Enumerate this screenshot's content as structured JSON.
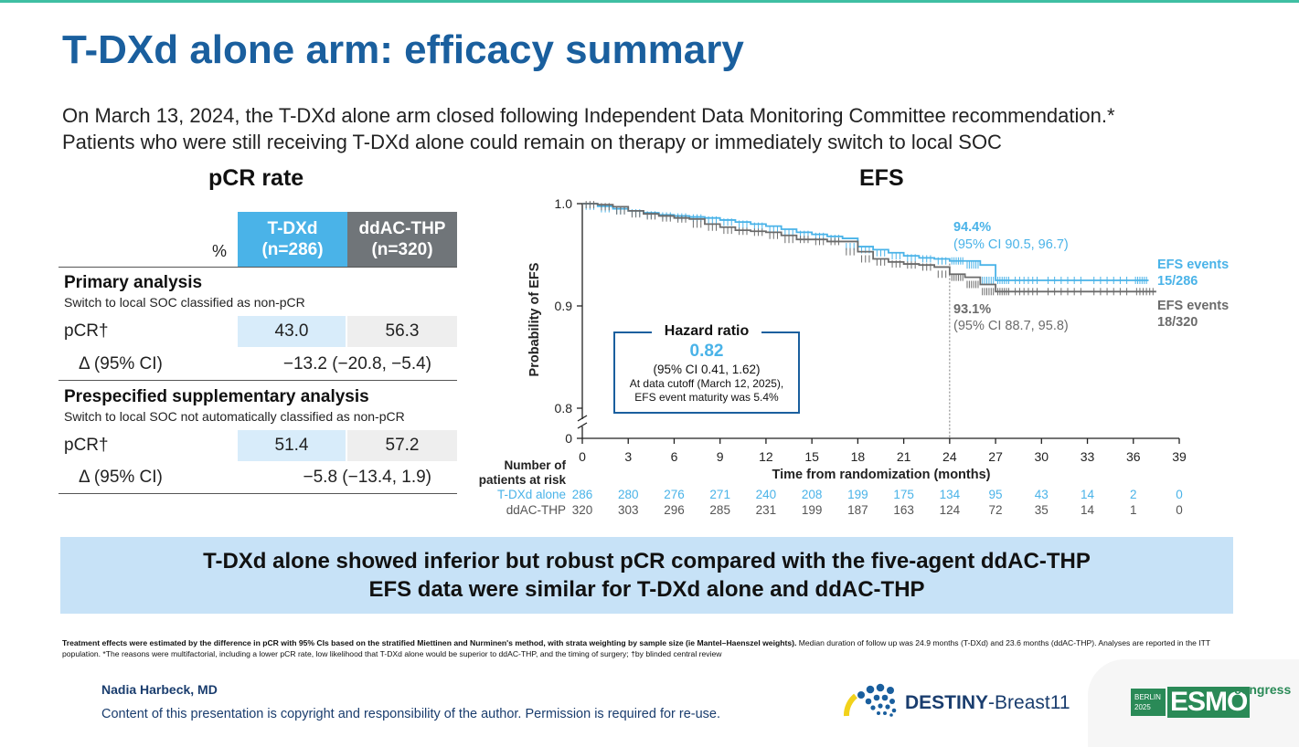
{
  "title": "T-DXd alone arm: efficacy summary",
  "intro": [
    "On March 13, 2024, the T-DXd alone arm closed following Independent Data Monitoring Committee recommendation.*",
    "Patients who were still receiving T-DXd alone could remain on therapy or immediately switch to local SOC"
  ],
  "pcr": {
    "title": "pCR rate",
    "pct_label": "%",
    "col_a": [
      "T-DXd",
      "(n=286)"
    ],
    "col_b": [
      "ddAC-THP",
      "(n=320)"
    ],
    "primary": {
      "heading": "Primary analysis",
      "sub": "Switch to local SOC classified as non-pCR",
      "row_label": "pCR†",
      "a": "43.0",
      "b": "56.3",
      "delta_label": "Δ (95% CI)",
      "delta": "−13.2 (−20.8, −5.4)"
    },
    "supplementary": {
      "heading": "Prespecified supplementary analysis",
      "sub": "Switch to local SOC not automatically classified as non-pCR",
      "row_label": "pCR†",
      "a": "51.4",
      "b": "57.2",
      "delta_label": "Δ (95% CI)",
      "delta": "−5.8 (−13.4, 1.9)"
    }
  },
  "chart_data": {
    "type": "line",
    "title": "EFS",
    "xlabel": "Time from randomization (months)",
    "ylabel": "Probability of EFS",
    "xlim": [
      0,
      39
    ],
    "ylim": [
      0.8,
      1.0
    ],
    "x_ticks": [
      0,
      3,
      6,
      9,
      12,
      15,
      18,
      21,
      24,
      27,
      30,
      33,
      36,
      39
    ],
    "y_ticks": [
      "0",
      "0.8",
      "0.9",
      "1.0"
    ],
    "axis_break": true,
    "colors": {
      "tdxd": "#4ab3e8",
      "ddac": "#6b6b6b"
    },
    "series": [
      {
        "name": "T-DXd alone",
        "x": [
          0,
          1,
          2,
          3,
          4,
          5,
          6,
          7,
          8,
          9,
          10,
          11,
          12,
          13,
          14,
          15,
          16,
          17,
          18,
          19,
          20,
          21,
          22,
          23,
          24,
          25,
          26,
          27,
          28,
          30,
          33,
          36,
          37
        ],
        "y": [
          1.0,
          0.9975,
          0.995,
          0.993,
          0.991,
          0.989,
          0.988,
          0.987,
          0.986,
          0.984,
          0.982,
          0.98,
          0.978,
          0.975,
          0.972,
          0.97,
          0.968,
          0.966,
          0.958,
          0.955,
          0.952,
          0.949,
          0.947,
          0.946,
          0.944,
          0.944,
          0.94,
          0.925,
          0.925,
          0.925,
          0.925,
          0.925,
          0.925
        ]
      },
      {
        "name": "ddAC-THP",
        "x": [
          0,
          1,
          2,
          3,
          4,
          5,
          6,
          7,
          8,
          9,
          10,
          11,
          12,
          13,
          14,
          15,
          16,
          17,
          18,
          19,
          20,
          21,
          22,
          23,
          24,
          25,
          26,
          27,
          28,
          30,
          33,
          36,
          37.5
        ],
        "y": [
          1.0,
          0.999,
          0.997,
          0.993,
          0.99,
          0.988,
          0.986,
          0.985,
          0.98,
          0.977,
          0.974,
          0.973,
          0.972,
          0.969,
          0.965,
          0.965,
          0.963,
          0.963,
          0.953,
          0.946,
          0.943,
          0.941,
          0.94,
          0.938,
          0.931,
          0.928,
          0.921,
          0.914,
          0.914,
          0.914,
          0.914,
          0.914,
          0.914
        ]
      }
    ],
    "annotations": {
      "tdxd_24": [
        "94.4%",
        "(95% CI 90.5, 96.7)"
      ],
      "ddac_24": [
        "93.1%",
        "(95% CI 88.7, 95.8)"
      ],
      "tdxd_events": [
        "EFS events",
        "15/286"
      ],
      "ddac_events": [
        "EFS events",
        "18/320"
      ],
      "hr_title": "Hazard ratio",
      "hr_value": "0.82",
      "hr_ci": "(95% CI 0.41, 1.62)",
      "hr_note": [
        "At data cutoff (March 12, 2025),",
        "EFS event maturity was 5.4%"
      ]
    },
    "risk_table": {
      "header": [
        "Number of",
        "patients at risk"
      ],
      "rows": [
        {
          "name": "T-DXd alone",
          "values": [
            "286",
            "280",
            "276",
            "271",
            "240",
            "208",
            "199",
            "175",
            "134",
            "95",
            "43",
            "14",
            "2",
            "0"
          ]
        },
        {
          "name": "ddAC-THP",
          "values": [
            "320",
            "303",
            "296",
            "285",
            "231",
            "199",
            "187",
            "163",
            "124",
            "72",
            "35",
            "14",
            "1",
            "0"
          ]
        }
      ]
    }
  },
  "banner": [
    "T-DXd alone showed inferior but robust pCR compared with the five-agent ddAC-THP",
    "EFS data were similar for T-DXd alone and ddAC-THP"
  ],
  "footnote": {
    "bold": "Treatment effects were estimated by the difference in pCR with 95% CIs based on the stratified Miettinen and Nurminen's method, with strata weighting by sample size (ie Mantel–Haenszel weights).",
    "rest": " Median duration of follow up was 24.9 months (T-DXd) and 23.6 months (ddAC-THP). Analyses are reported in the ITT population. *The reasons were multifactorial, including a lower pCR rate, low likelihood that T-DXd alone would be superior to ddAC-THP, and the timing of surgery; †by blinded central review"
  },
  "author": "Nadia Harbeck, MD",
  "copyright": "Content of this presentation is copyright and responsibility of the author. Permission is required for re-use.",
  "logo_destiny": {
    "word1": "DESTINY",
    "word2": "-Breast11"
  },
  "logo_esmo": {
    "city": "BERLIN",
    "year": "2025",
    "brand": "ESMO",
    "tag": "congress"
  }
}
